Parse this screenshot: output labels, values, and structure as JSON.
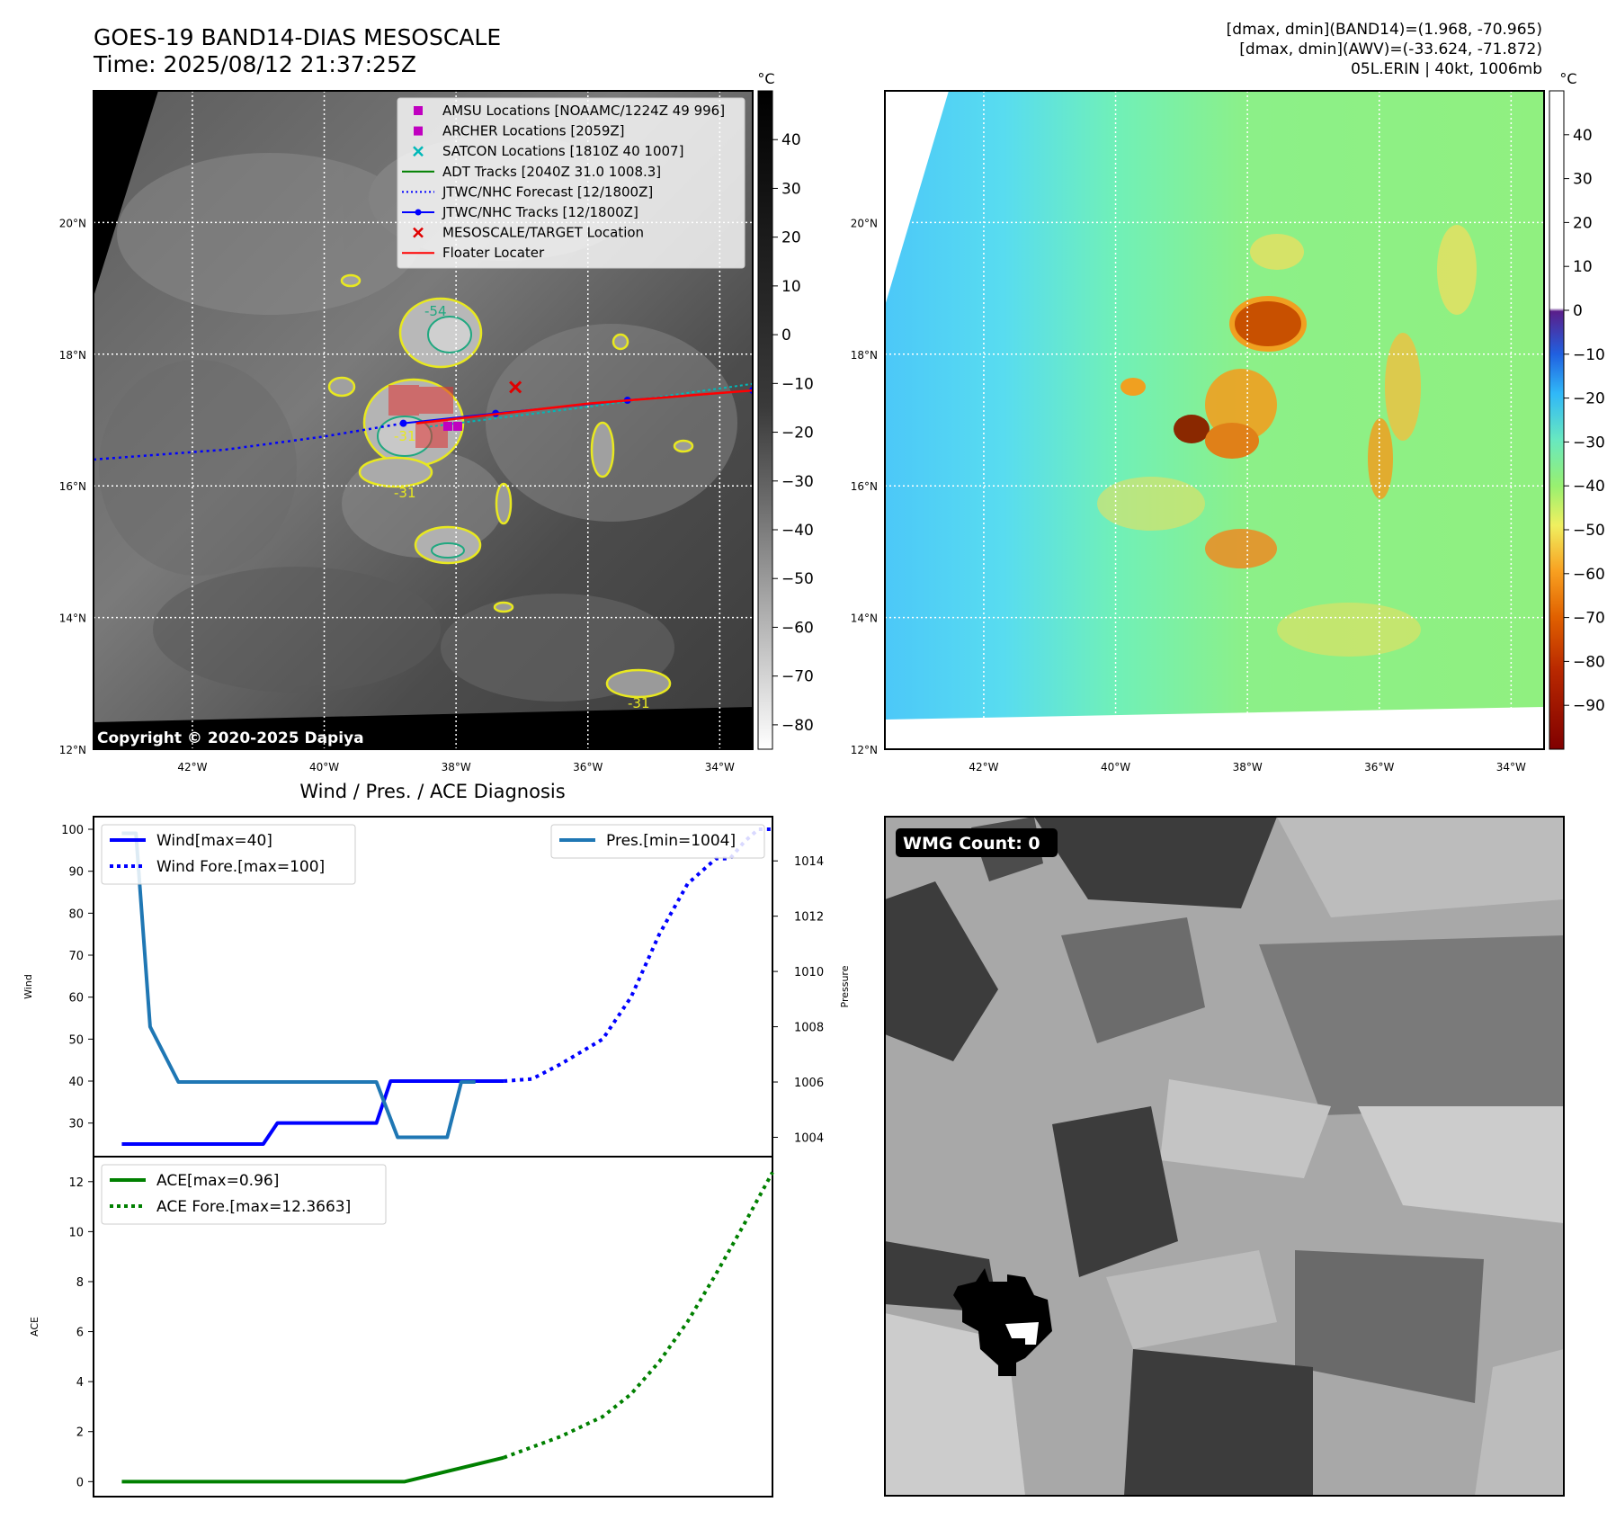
{
  "header": {
    "title_line1": "GOES-19 BAND14-DIAS MESOSCALE",
    "title_line2": "Time: 2025/08/12 21:37:25Z",
    "info_line1": "[dmax, dmin](BAND14)=(1.968, -70.965)",
    "info_line2": "[dmax, dmin](AWV)=(-33.624, -71.872)",
    "info_line3": "05L.ERIN | 40kt, 1006mb"
  },
  "map_axes": {
    "lat_labels": [
      "20°N",
      "18°N",
      "16°N",
      "14°N",
      "12°N"
    ],
    "lat_values": [
      20,
      18,
      16,
      14,
      12
    ],
    "lon_labels": [
      "42°W",
      "40°W",
      "38°W",
      "36°W",
      "34°W"
    ],
    "lon_values": [
      -42,
      -40,
      -38,
      -36,
      -34
    ],
    "lat_range": [
      12,
      22
    ],
    "lon_range": [
      -43.5,
      -33.5
    ]
  },
  "ir_panel": {
    "copyright": "Copyright © 2020-2025 Dapiya",
    "colorbar_unit": "°C",
    "colorbar_ticks": [
      "40",
      "30",
      "20",
      "10",
      "0",
      "−10",
      "−20",
      "−30",
      "−40",
      "−50",
      "−60",
      "−70",
      "−80"
    ],
    "colorbar_range": [
      -85,
      50
    ],
    "contour_labels": [
      "-31",
      "-31",
      "-31",
      "-54"
    ],
    "legend": [
      {
        "label": "AMSU Locations [NOAAMC/1224Z 49 996]",
        "kind": "square",
        "color": "#c000c0"
      },
      {
        "label": "ARCHER Locations [2059Z]",
        "kind": "square",
        "color": "#c000c0"
      },
      {
        "label": "SATCON Locations [1810Z 40 1007]",
        "kind": "x",
        "color": "#00b8b8"
      },
      {
        "label": "ADT Tracks [2040Z 31.0 1008.3]",
        "kind": "line",
        "color": "#008000"
      },
      {
        "label": "JTWC/NHC Forecast [12/1800Z]",
        "kind": "dotted",
        "color": "#0000ff"
      },
      {
        "label": "JTWC/NHC Tracks [12/1800Z]",
        "kind": "dotline",
        "color": "#0000ff"
      },
      {
        "label": "MESOSCALE/TARGET Location",
        "kind": "x",
        "color": "#e00000"
      },
      {
        "label": "Floater Locater",
        "kind": "line",
        "color": "#ff0000"
      }
    ],
    "tracks": {
      "forecast_lon": [
        -43.5,
        -41.5,
        -40.0,
        -38.8
      ],
      "forecast_lat": [
        16.4,
        16.55,
        16.75,
        16.95
      ],
      "best_lon": [
        -38.8,
        -37.4,
        -35.4,
        -33.5
      ],
      "best_lat": [
        16.95,
        17.1,
        17.3,
        17.45
      ],
      "adt_lon": [
        -38.4,
        -36.0,
        -33.5
      ],
      "adt_lat": [
        16.9,
        17.2,
        17.55
      ],
      "floater_lon": [
        -38.6,
        -36.0,
        -33.5
      ],
      "floater_lat": [
        16.95,
        17.25,
        17.45
      ],
      "target": [
        -37.1,
        17.5
      ]
    }
  },
  "awv_panel": {
    "colorbar_unit": "°C",
    "colorbar_ticks": [
      "40",
      "30",
      "20",
      "10",
      "0",
      "−10",
      "−20",
      "−30",
      "−40",
      "−50",
      "−60",
      "−70",
      "−80",
      "−90"
    ],
    "colorbar_range": [
      -100,
      50
    ]
  },
  "diag_panel": {
    "title": "Wind / Pres. / ACE Diagnosis"
  },
  "wmg_panel": {
    "badge": "WMG Count: 0"
  },
  "chart_data": [
    {
      "type": "line",
      "panel": "wind-pressure",
      "ylabel": "Wind",
      "ylim": [
        22,
        103
      ],
      "y_ticks": [
        30,
        40,
        50,
        60,
        70,
        80,
        90,
        100
      ],
      "xlim": [
        0,
        48
      ],
      "series": [
        {
          "name": "Wind[max=40]",
          "color": "#0000ff",
          "style": "solid",
          "axis": "left",
          "x": [
            2,
            12,
            13,
            16,
            20,
            21,
            23,
            29
          ],
          "y": [
            25,
            25,
            30,
            30,
            30,
            40,
            40,
            40
          ]
        },
        {
          "name": "Wind Fore.[max=100]",
          "color": "#0000ff",
          "style": "dotted",
          "axis": "left",
          "x": [
            29,
            31,
            33,
            36,
            38,
            40,
            42,
            44,
            45,
            46,
            47,
            48
          ],
          "y": [
            40,
            40.5,
            44,
            50,
            60,
            75,
            87,
            93,
            93,
            97,
            100,
            100
          ]
        },
        {
          "name": "Pres.[min=1004]",
          "color": "#1f77b4",
          "style": "solid",
          "axis": "right",
          "x": [
            2,
            3,
            4,
            6,
            20,
            21.5,
            23,
            25,
            26,
            27
          ],
          "y": [
            1015,
            1015,
            1008,
            1006,
            1006,
            1004,
            1004,
            1004,
            1006,
            1006
          ]
        }
      ],
      "y2label": "Pressure",
      "y2lim": [
        1003.3,
        1015.6
      ],
      "y2_ticks": [
        1004,
        1006,
        1008,
        1010,
        1012,
        1014
      ],
      "legend_left": [
        "Wind[max=40]",
        "Wind Fore.[max=100]"
      ],
      "legend_right": [
        "Pres.[min=1004]"
      ]
    },
    {
      "type": "line",
      "panel": "ace",
      "ylabel": "ACE",
      "ylim": [
        -0.6,
        13.0
      ],
      "y_ticks": [
        0,
        2,
        4,
        6,
        8,
        10,
        12
      ],
      "xlim": [
        0,
        48
      ],
      "series": [
        {
          "name": "ACE[max=0.96]",
          "color": "#008000",
          "style": "solid",
          "x": [
            2,
            15,
            22,
            29
          ],
          "y": [
            0,
            0,
            0,
            0.96
          ]
        },
        {
          "name": "ACE Fore.[max=12.3663]",
          "color": "#008000",
          "style": "dotted",
          "x": [
            29,
            33,
            36,
            38,
            40,
            42,
            44,
            46,
            48
          ],
          "y": [
            0.96,
            1.8,
            2.6,
            3.5,
            4.8,
            6.4,
            8.3,
            10.3,
            12.37
          ]
        }
      ],
      "legend": [
        "ACE[max=0.96]",
        "ACE Fore.[max=12.3663]"
      ]
    }
  ]
}
